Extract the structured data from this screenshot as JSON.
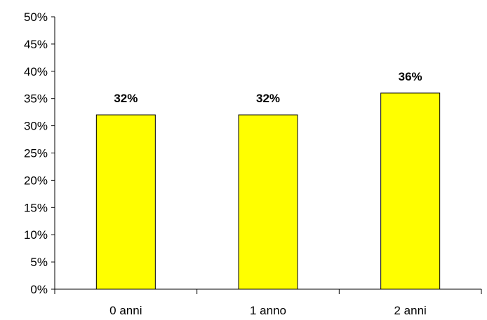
{
  "chart_data": {
    "type": "bar",
    "categories": [
      "0 anni",
      "1 anno",
      "2 anni"
    ],
    "values": [
      32,
      32,
      36
    ],
    "data_labels": [
      "32%",
      "32%",
      "36%"
    ],
    "title": "",
    "xlabel": "",
    "ylabel": "",
    "ylim": [
      0,
      50
    ],
    "y_ticks": [
      0,
      5,
      10,
      15,
      20,
      25,
      30,
      35,
      40,
      45,
      50
    ],
    "y_tick_labels": [
      "0%",
      "5%",
      "10%",
      "15%",
      "20%",
      "25%",
      "30%",
      "35%",
      "40%",
      "45%",
      "50%"
    ],
    "grid": false,
    "legend": "none",
    "colors": {
      "bar_fill": "#ffff00",
      "bar_stroke": "#000000",
      "axis": "#000000"
    }
  }
}
